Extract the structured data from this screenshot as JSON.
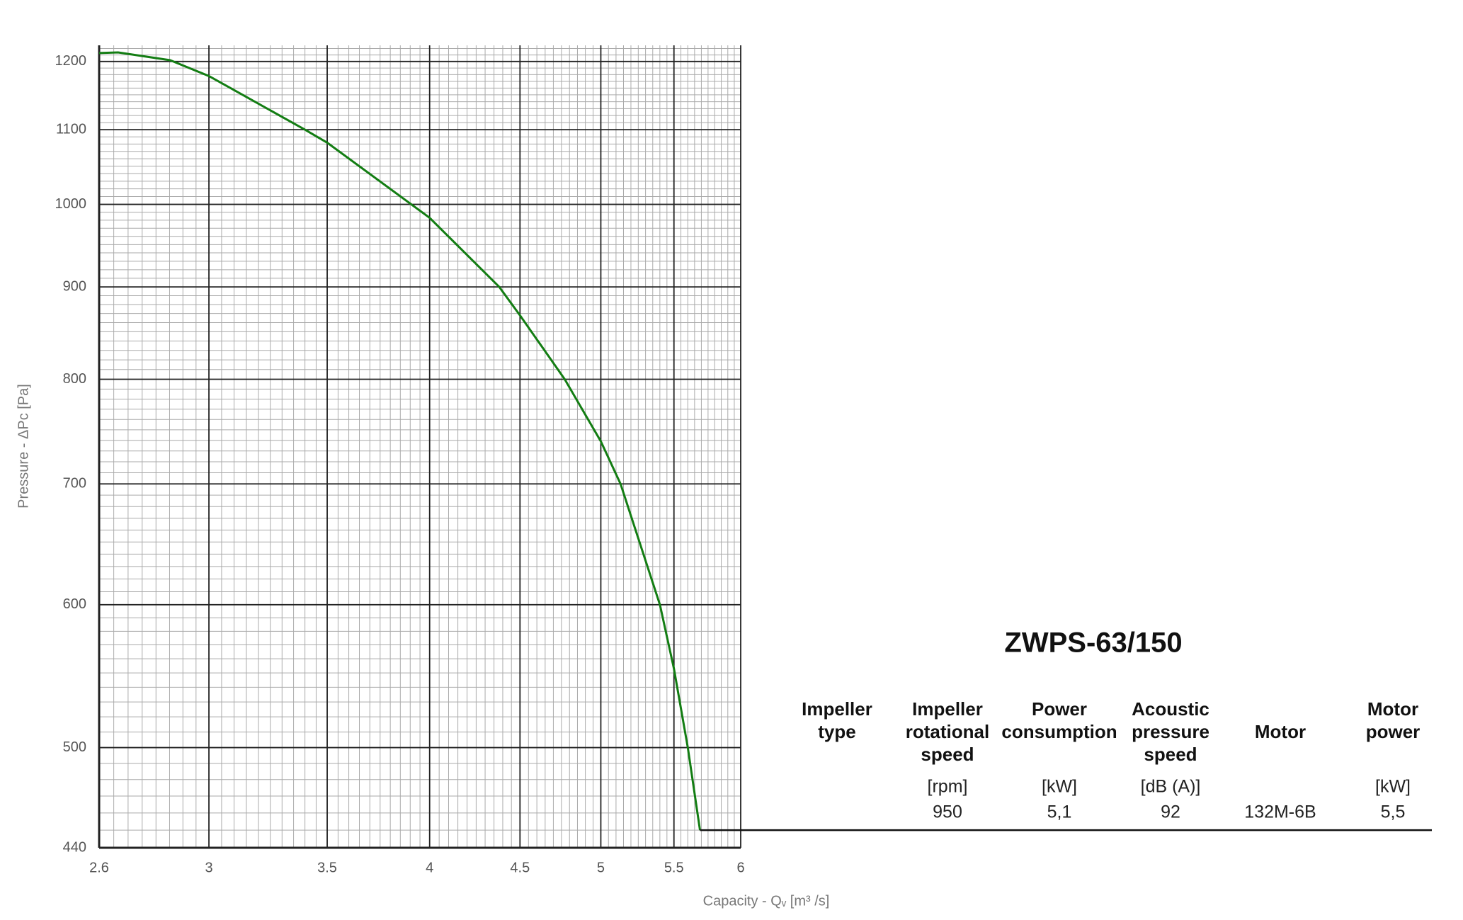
{
  "chart_data": {
    "type": "line",
    "x_label": "Capacity - Qᵥ [m³ /s]",
    "y_label": "Pressure - ΔPc [Pa]",
    "x": [
      2.6,
      2.665,
      2.852,
      3,
      3.4,
      3.5,
      4,
      4.38,
      4.5,
      4.77,
      5,
      5.13,
      5.4,
      5.5,
      5.6,
      5.69
    ],
    "values": [
      1213,
      1214,
      1202,
      1178,
      1100,
      1082,
      983,
      900,
      868,
      800,
      739,
      700,
      600,
      553,
      500,
      450
    ],
    "color": "#137d13",
    "xscale": "log",
    "yscale": "log",
    "xlim": [
      2.6,
      6
    ],
    "ylim": [
      440,
      1225
    ],
    "xticks": [
      2.6,
      3,
      3.5,
      4,
      4.5,
      5,
      5.5,
      6
    ],
    "yticks": [
      440,
      500,
      600,
      700,
      800,
      900,
      1000,
      1100,
      1200
    ],
    "xminorticks": [
      2.65,
      2.7,
      2.75,
      2.8,
      2.85,
      2.9,
      2.95,
      3.05,
      3.1,
      3.15,
      3.2,
      3.25,
      3.3,
      3.35,
      3.4,
      3.45,
      3.55,
      3.6,
      3.65,
      3.7,
      3.75,
      3.8,
      3.85,
      3.9,
      3.95,
      4.05,
      4.1,
      4.15,
      4.2,
      4.25,
      4.3,
      4.35,
      4.4,
      4.45,
      4.55,
      4.6,
      4.65,
      4.7,
      4.75,
      4.8,
      4.85,
      4.9,
      4.95,
      5.05,
      5.1,
      5.15,
      5.2,
      5.25,
      5.3,
      5.35,
      5.4,
      5.45,
      5.55,
      5.6,
      5.65,
      5.7,
      5.75,
      5.8,
      5.85,
      5.9,
      5.95
    ],
    "yminorticks": [
      450,
      460,
      470,
      480,
      490,
      510,
      520,
      530,
      540,
      550,
      560,
      570,
      580,
      590,
      610,
      620,
      630,
      640,
      650,
      660,
      670,
      680,
      690,
      710,
      720,
      730,
      740,
      750,
      760,
      770,
      780,
      790,
      810,
      820,
      830,
      840,
      850,
      860,
      870,
      880,
      890,
      910,
      920,
      930,
      940,
      950,
      960,
      970,
      980,
      990,
      1010,
      1020,
      1030,
      1040,
      1050,
      1060,
      1070,
      1080,
      1090,
      1110,
      1120,
      1130,
      1140,
      1150,
      1160,
      1170,
      1180,
      1190,
      1210,
      1220
    ],
    "grid": true
  },
  "table": {
    "title": "ZWPS-63/150",
    "headers": [
      [
        "Impeller",
        "type"
      ],
      [
        "Impeller",
        "rotational",
        "speed"
      ],
      [
        "Power",
        "consumption"
      ],
      [
        "Acoustic",
        "pressure",
        "speed"
      ],
      [
        "Motor"
      ],
      [
        "Motor",
        "power"
      ]
    ],
    "units": [
      null,
      "[rpm]",
      "[kW]",
      "[dB (A)]",
      null,
      "[kW]"
    ],
    "rows": [
      [
        null,
        "950",
        "5,1",
        "92",
        "132M-6B",
        "5,5"
      ]
    ]
  }
}
